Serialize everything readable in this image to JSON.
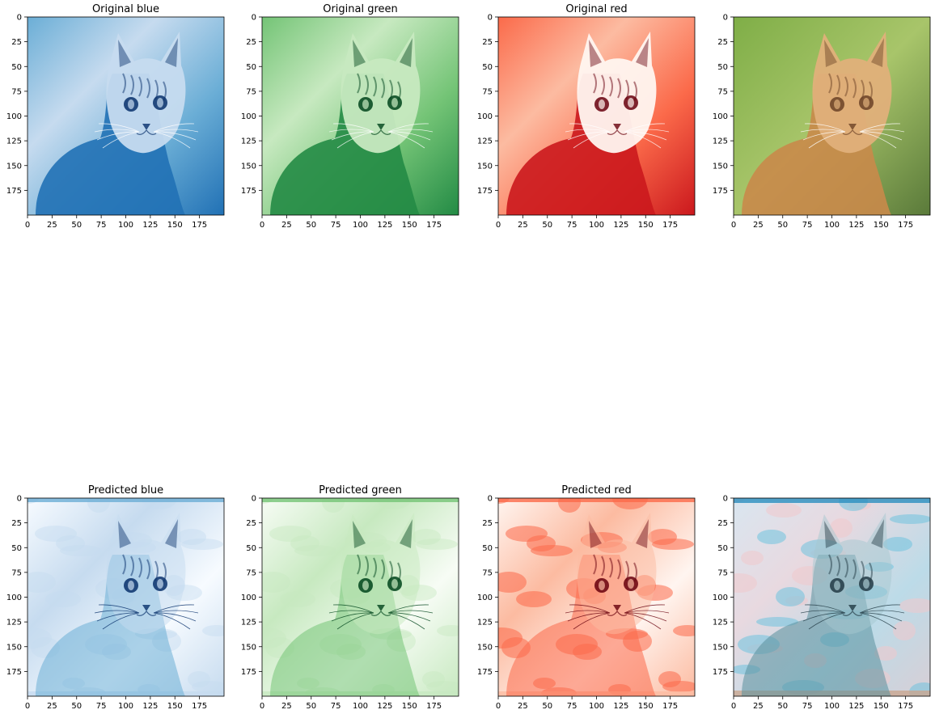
{
  "figure": {
    "panels": [
      {
        "title": "Original blue",
        "cmap": "blue",
        "kind": "original"
      },
      {
        "title": "Original green",
        "cmap": "green",
        "kind": "original"
      },
      {
        "title": "Original red",
        "cmap": "red",
        "kind": "original"
      },
      {
        "title": "",
        "cmap": "rgb",
        "kind": "original"
      },
      {
        "title": "Predicted blue",
        "cmap": "blue",
        "kind": "predicted"
      },
      {
        "title": "Predicted green",
        "cmap": "green",
        "kind": "predicted"
      },
      {
        "title": "Predicted red",
        "cmap": "red",
        "kind": "predicted"
      },
      {
        "title": "",
        "cmap": "rgbpred",
        "kind": "predicted"
      }
    ],
    "x_ticks": [
      "0",
      "25",
      "50",
      "75",
      "100",
      "125",
      "150",
      "175"
    ],
    "y_ticks": [
      "0",
      "25",
      "50",
      "75",
      "100",
      "125",
      "150",
      "175"
    ],
    "colors": {
      "blue": [
        "#f7fbff",
        "#c6dbef",
        "#6baed6",
        "#2171b5",
        "#08306b"
      ],
      "green": [
        "#f7fcf5",
        "#c7e9c0",
        "#74c476",
        "#238b45",
        "#00441b"
      ],
      "red": [
        "#fff5f0",
        "#fcbba1",
        "#fb6a4a",
        "#cb181d",
        "#67000d"
      ],
      "rgb_bg": [
        "#7fae47",
        "#a8c56a",
        "#5a7a3a"
      ],
      "cat": [
        "#c98a4a",
        "#e0b07a",
        "#6b4226"
      ]
    }
  }
}
